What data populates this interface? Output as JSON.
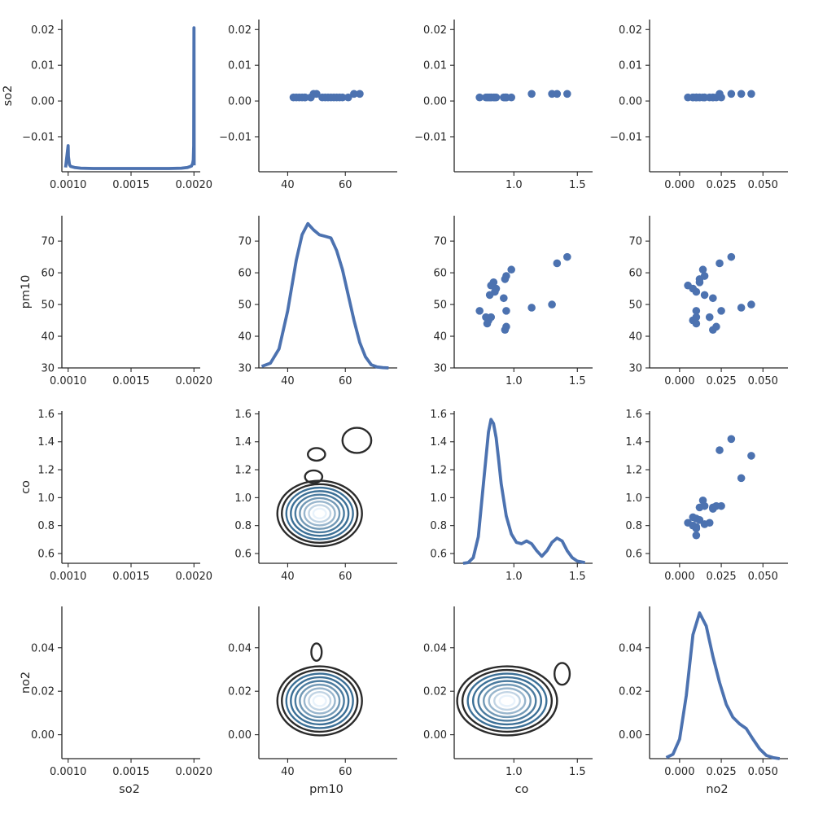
{
  "chart_data": {
    "type": "scatter",
    "layout": "pairplot",
    "variables": [
      "so2",
      "pm10",
      "co",
      "no2"
    ],
    "colors": {
      "scatter": "#4c72b0",
      "kde_line": "#4c72b0",
      "contour_dark": "#2b2b2b",
      "contour_mid": "#3b6f96",
      "contour_light": "#e8f2fb"
    },
    "axes": {
      "so2": {
        "lim": [
          0.00095,
          0.00205
        ],
        "ticks": [
          0.001,
          0.0015,
          0.002
        ],
        "tick_labels": [
          "0.0010",
          "0.0015",
          "0.0020"
        ]
      },
      "pm10": {
        "lim": [
          30,
          78
        ],
        "ticks": [
          40,
          60
        ],
        "tick_labels": [
          "40",
          "60"
        ]
      },
      "co": {
        "lim": [
          0.53,
          1.62
        ],
        "ticks": [
          1.0,
          1.5
        ],
        "tick_labels": [
          "1.0",
          "1.5"
        ]
      },
      "no2": {
        "lim": [
          -0.018,
          0.065
        ],
        "ticks": [
          0.0,
          0.025,
          0.05
        ],
        "tick_labels": [
          "0.000",
          "0.025",
          "0.050"
        ]
      }
    },
    "row_axes": {
      "so2": {
        "lim": [
          -0.0198,
          0.0228
        ],
        "ticks": [
          -0.01,
          0.0,
          0.01,
          0.02
        ],
        "tick_labels": [
          "−0.01",
          "0.00",
          "0.01",
          "0.02"
        ]
      },
      "pm10": {
        "lim": [
          30,
          78
        ],
        "ticks": [
          30,
          40,
          50,
          60,
          70
        ],
        "tick_labels": [
          "30",
          "40",
          "50",
          "60",
          "70"
        ]
      },
      "co": {
        "lim": [
          0.53,
          1.62
        ],
        "ticks": [
          0.6,
          0.8,
          1.0,
          1.2,
          1.4,
          1.6
        ],
        "tick_labels": [
          "0.6",
          "0.8",
          "1.0",
          "1.2",
          "1.4",
          "1.6"
        ]
      },
      "no2": {
        "lim": [
          -0.011,
          0.059
        ],
        "ticks": [
          0.0,
          0.02,
          0.04
        ],
        "tick_labels": [
          "0.00",
          "0.02",
          "0.04"
        ]
      }
    },
    "points": {
      "so2": [
        0.001,
        0.001,
        0.001,
        0.001,
        0.001,
        0.001,
        0.001,
        0.001,
        0.001,
        0.001,
        0.001,
        0.001,
        0.001,
        0.001,
        0.001,
        0.001,
        0.001,
        0.002,
        0.002,
        0.002,
        0.002
      ],
      "pm10": [
        48,
        46,
        45,
        44,
        46,
        53,
        56,
        54,
        55,
        57,
        52,
        58,
        59,
        61,
        48,
        43,
        42,
        49,
        50,
        63,
        65
      ],
      "co": [
        0.73,
        0.78,
        0.8,
        0.79,
        0.82,
        0.81,
        0.82,
        0.85,
        0.86,
        0.84,
        0.92,
        0.93,
        0.94,
        0.98,
        0.94,
        0.94,
        0.93,
        1.14,
        1.3,
        1.34,
        1.42
      ],
      "no2": [
        0.01,
        0.01,
        0.008,
        0.01,
        0.018,
        0.015,
        0.005,
        0.01,
        0.008,
        0.012,
        0.02,
        0.012,
        0.015,
        0.014,
        0.025,
        0.022,
        0.02,
        0.037,
        0.043,
        0.024,
        0.031
      ]
    },
    "diagonal": {
      "so2": {
        "x": [
          0.00098,
          0.001,
          0.0010015,
          0.00101,
          0.00102,
          0.00105,
          0.0011,
          0.0012,
          0.0013,
          0.0014,
          0.0015,
          0.0016,
          0.0017,
          0.0018,
          0.0019,
          0.00195,
          0.00198,
          0.00199,
          0.001995,
          0.001998,
          0.002,
          0.0020015
        ],
        "y": [
          -0.0186,
          -0.0125,
          -0.0155,
          -0.0178,
          -0.0183,
          -0.0186,
          -0.0188,
          -0.0189,
          -0.0189,
          -0.0189,
          -0.0189,
          -0.0189,
          -0.0189,
          -0.0189,
          -0.0188,
          -0.0186,
          -0.0182,
          -0.0175,
          -0.0165,
          -0.0125,
          0.0205,
          -0.018
        ]
      },
      "pm10": {
        "x": [
          31,
          34,
          37,
          40,
          43,
          45,
          47,
          49,
          51,
          53,
          55,
          57,
          59,
          61,
          63,
          65,
          67,
          69,
          71,
          73,
          75
        ],
        "y": [
          30.5,
          31.5,
          36,
          48,
          64,
          72,
          75.5,
          73.5,
          72,
          71.5,
          71,
          67,
          61,
          53,
          45,
          38,
          33.5,
          31,
          30.3,
          30.1,
          30
        ]
      },
      "co": {
        "x": [
          0.6,
          0.64,
          0.68,
          0.72,
          0.76,
          0.8,
          0.82,
          0.84,
          0.86,
          0.88,
          0.9,
          0.94,
          0.98,
          1.02,
          1.06,
          1.1,
          1.14,
          1.18,
          1.22,
          1.26,
          1.3,
          1.34,
          1.38,
          1.42,
          1.46,
          1.5,
          1.56
        ],
        "y": [
          0.53,
          0.535,
          0.57,
          0.72,
          1.1,
          1.47,
          1.56,
          1.53,
          1.43,
          1.27,
          1.1,
          0.87,
          0.74,
          0.68,
          0.67,
          0.69,
          0.67,
          0.62,
          0.58,
          0.62,
          0.68,
          0.71,
          0.69,
          0.62,
          0.57,
          0.545,
          0.535
        ]
      },
      "no2": {
        "x": [
          -0.008,
          -0.004,
          0.0,
          0.004,
          0.008,
          0.012,
          0.016,
          0.02,
          0.024,
          0.028,
          0.032,
          0.036,
          0.04,
          0.044,
          0.048,
          0.052,
          0.056,
          0.06
        ],
        "y": [
          -0.0105,
          -0.009,
          -0.002,
          0.018,
          0.046,
          0.056,
          0.05,
          0.036,
          0.024,
          0.014,
          0.008,
          0.005,
          0.0028,
          -0.002,
          -0.0065,
          -0.0095,
          -0.0105,
          -0.011
        ]
      }
    },
    "contours": {
      "pm10_co": [
        {
          "level": 0,
          "rings": [
            {
              "cx": 50,
              "cy": 1.31,
              "rx": 3.0,
              "ry": 0.045
            },
            {
              "cx": 49,
              "cy": 1.15,
              "rx": 3.0,
              "ry": 0.045
            },
            {
              "cx": 64,
              "cy": 1.41,
              "rx": 5.0,
              "ry": 0.09
            }
          ]
        }
      ],
      "pm10_no2": [
        {
          "level": 0,
          "rings": [
            {
              "cx": 50,
              "cy": 0.038,
              "rx": 1.8,
              "ry": 0.004
            }
          ]
        }
      ],
      "co_no2": [
        {
          "level": 0,
          "rings": [
            {
              "cx": 1.38,
              "cy": 0.028,
              "rx": 0.06,
              "ry": 0.005
            }
          ]
        }
      ]
    }
  }
}
